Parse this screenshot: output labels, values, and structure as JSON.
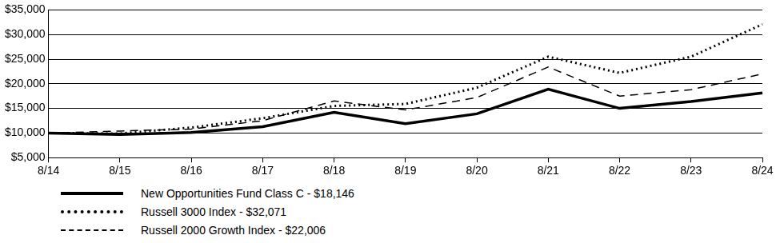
{
  "chart_data": {
    "type": "line",
    "categories": [
      "8/14",
      "8/15",
      "8/16",
      "8/17",
      "8/18",
      "8/19",
      "8/20",
      "8/21",
      "8/22",
      "8/23",
      "8/24"
    ],
    "series": [
      {
        "name": "New Opportunities Fund Class C - $18,146",
        "color": "#000000",
        "line_style": "solid",
        "values": [
          10000,
          9700,
          10100,
          11300,
          14200,
          11900,
          13900,
          18900,
          15000,
          16400,
          18146
        ]
      },
      {
        "name": "Russell 3000 Index - $32,071",
        "color": "#000000",
        "line_style": "dotted",
        "values": [
          10000,
          9900,
          11100,
          13000,
          15500,
          15900,
          19200,
          25500,
          22200,
          25500,
          32071
        ]
      },
      {
        "name": "Russell 2000 Growth Index - $22,006",
        "color": "#000000",
        "line_style": "dashed",
        "values": [
          10000,
          10400,
          10800,
          12500,
          16500,
          14700,
          17200,
          23400,
          17500,
          18800,
          22006
        ]
      }
    ],
    "ylim": [
      5000,
      35000
    ],
    "yticks": [
      {
        "value": 5000,
        "label": "$5,000"
      },
      {
        "value": 10000,
        "label": "$10,000"
      },
      {
        "value": 15000,
        "label": "$15,000"
      },
      {
        "value": 20000,
        "label": "$20,000"
      },
      {
        "value": 25000,
        "label": "$25,000"
      },
      {
        "value": 30000,
        "label": "$30,000"
      },
      {
        "value": 35000,
        "label": "$35,000"
      }
    ],
    "grid": true,
    "legend": "bottom"
  }
}
